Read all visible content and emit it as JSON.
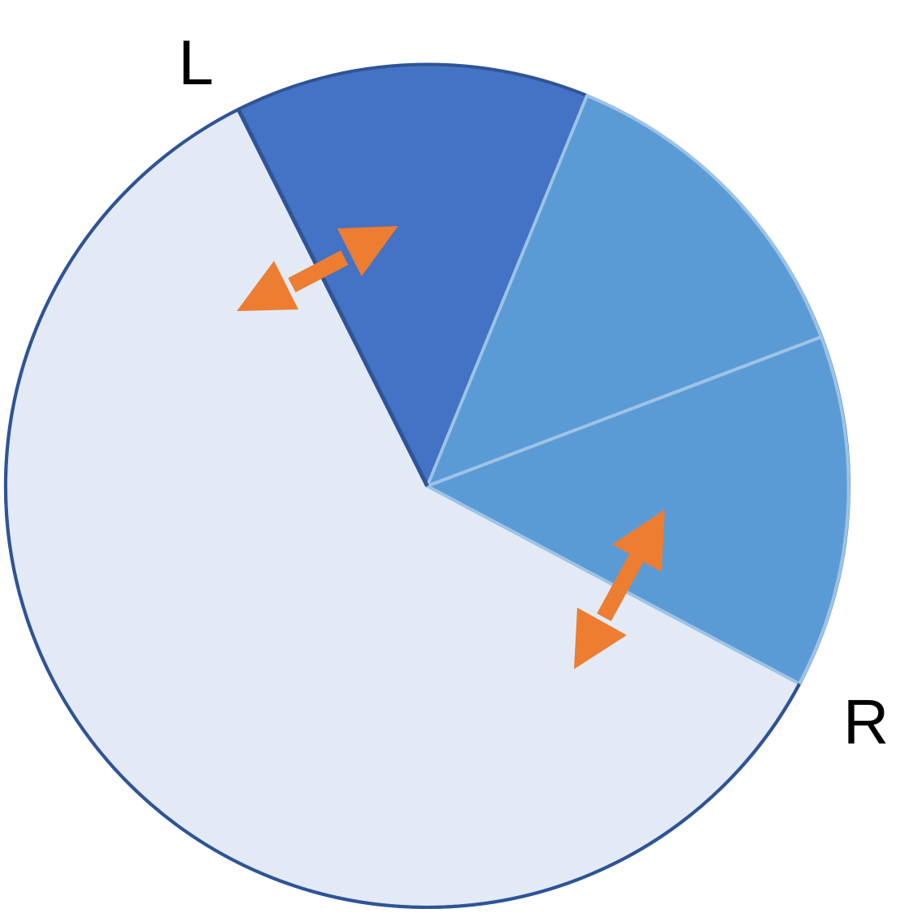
{
  "labels": {
    "left": "L",
    "right": "R"
  },
  "colors": {
    "background_sector": "#E3EAF6",
    "outline": "#2F5496",
    "selected_sector": "#4472C4",
    "neighbor_sector": "#5B9BD5",
    "neighbor_divider": "#9DC3E6",
    "arrow": "#ED7D31"
  },
  "icons": {
    "left_boundary_arrow": "double-headed-arrow-icon",
    "right_boundary_arrow": "double-headed-arrow-icon"
  }
}
